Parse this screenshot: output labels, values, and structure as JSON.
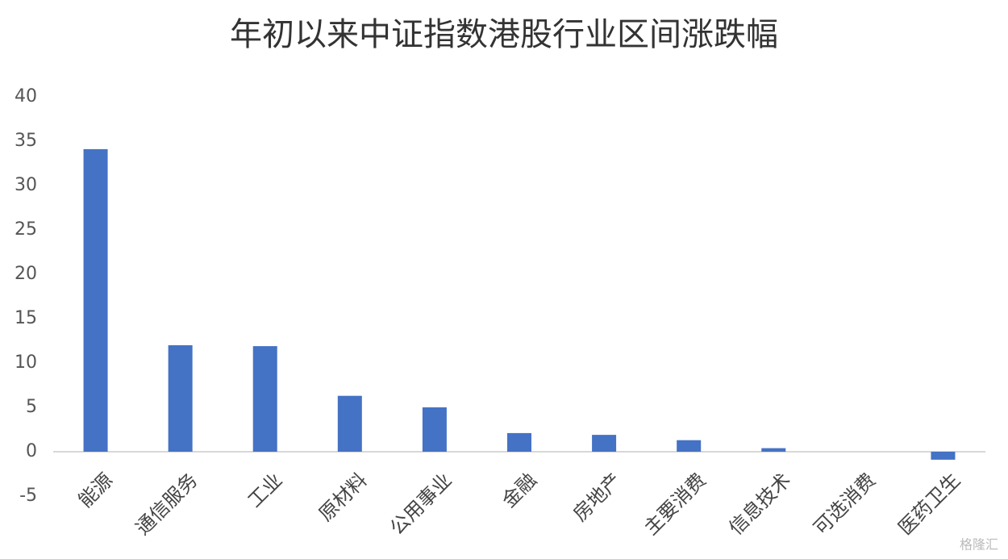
{
  "chart_data": {
    "type": "bar",
    "title": "年初以来中证指数港股行业区间涨跌幅",
    "categories": [
      "能源",
      "通信服务",
      "工业",
      "原材料",
      "公用事业",
      "金融",
      "房地产",
      "主要消费",
      "信息技术",
      "可选消费",
      "医药卫生"
    ],
    "values": [
      34.1,
      12.0,
      11.9,
      6.3,
      5.0,
      2.1,
      1.9,
      1.3,
      0.4,
      0,
      -0.9
    ],
    "color": "#4472c4",
    "ylim": [
      -5,
      40
    ],
    "yticks": [
      -5,
      0,
      5,
      10,
      15,
      20,
      25,
      30,
      35,
      40
    ],
    "grid": false,
    "watermark": "格隆汇"
  }
}
